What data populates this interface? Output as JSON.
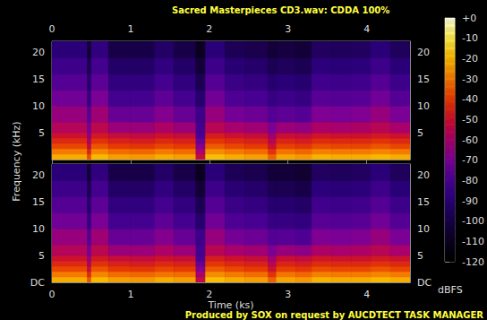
{
  "chart_data": {
    "type": "spectrogram",
    "title": "Sacred Masterpieces CD3.wav: CDDA 100%",
    "annotation": "Produced by SOX on request by AUCDTECT TASK MANAGER",
    "x_label": "Time (ks)",
    "y_label": "Frequency (kHz)",
    "xlim": [
      0,
      4.55
    ],
    "xticks": [
      0,
      1,
      2,
      3,
      4
    ],
    "ylim": [
      0,
      22.05
    ],
    "time_edges": [
      0,
      0.45,
      0.5,
      0.72,
      1.0,
      1.3,
      1.55,
      1.83,
      1.95,
      2.2,
      2.45,
      2.75,
      2.85,
      3.1,
      3.3,
      3.55,
      3.8,
      4.05,
      4.3,
      4.55
    ],
    "freq_edges": [
      0,
      1,
      2,
      3,
      4,
      5,
      7,
      10,
      13,
      16,
      19,
      22.05
    ],
    "panels": [
      {
        "yticks": [
          5,
          10,
          15,
          20
        ],
        "cells": [
          [
            -22,
            -37,
            -20,
            -24,
            -25,
            -22,
            -24,
            -52,
            -19,
            -22,
            -24,
            -34,
            -23,
            -25,
            -21,
            -22,
            -22,
            -20,
            -22
          ],
          [
            -30,
            -45,
            -28,
            -32,
            -33,
            -30,
            -32,
            -60,
            -27,
            -30,
            -32,
            -42,
            -31,
            -33,
            -29,
            -30,
            -30,
            -28,
            -30
          ],
          [
            -38,
            -53,
            -36,
            -40,
            -41,
            -38,
            -40,
            -68,
            -35,
            -38,
            -40,
            -50,
            -39,
            -41,
            -37,
            -38,
            -38,
            -36,
            -38
          ],
          [
            -44,
            -59,
            -42,
            -46,
            -47,
            -44,
            -46,
            -74,
            -41,
            -44,
            -46,
            -56,
            -45,
            -47,
            -43,
            -44,
            -44,
            -42,
            -44
          ],
          [
            -50,
            -65,
            -48,
            -52,
            -53,
            -50,
            -52,
            -80,
            -47,
            -50,
            -52,
            -62,
            -51,
            -53,
            -49,
            -50,
            -50,
            -48,
            -50
          ],
          [
            -57,
            -71,
            -55,
            -63,
            -63,
            -59,
            -63,
            -82,
            -56,
            -60,
            -62,
            -70,
            -63,
            -65,
            -59,
            -60,
            -59,
            -56,
            -60
          ],
          [
            -64,
            -78,
            -62,
            -74,
            -74,
            -68,
            -74,
            -84,
            -64,
            -71,
            -73,
            -78,
            -76,
            -78,
            -69,
            -70,
            -69,
            -64,
            -70
          ],
          [
            -72,
            -86,
            -70,
            -82,
            -82,
            -76,
            -82,
            -92,
            -72,
            -79,
            -81,
            -86,
            -84,
            -86,
            -77,
            -78,
            -77,
            -72,
            -78
          ],
          [
            -78,
            -92,
            -76,
            -88,
            -88,
            -82,
            -88,
            -98,
            -78,
            -85,
            -87,
            -92,
            -90,
            -92,
            -83,
            -84,
            -83,
            -78,
            -84
          ],
          [
            -84,
            -98,
            -82,
            -94,
            -94,
            -88,
            -94,
            -104,
            -84,
            -91,
            -93,
            -98,
            -96,
            -98,
            -89,
            -90,
            -89,
            -84,
            -90
          ],
          [
            -90,
            -104,
            -88,
            -100,
            -100,
            -94,
            -100,
            -110,
            -90,
            -97,
            -99,
            -104,
            -102,
            -104,
            -95,
            -96,
            -95,
            -90,
            -96
          ]
        ]
      },
      {
        "yticks": [
          {
            "value": 0,
            "label": "DC"
          },
          5,
          10,
          15,
          20
        ],
        "cells": [
          [
            -22,
            -36,
            -20,
            -24,
            -25,
            -22,
            -24,
            -53,
            -19,
            -22,
            -24,
            -34,
            -23,
            -25,
            -21,
            -22,
            -22,
            -20,
            -22
          ],
          [
            -30,
            -44,
            -28,
            -32,
            -33,
            -31,
            -32,
            -60,
            -27,
            -30,
            -32,
            -42,
            -31,
            -33,
            -29,
            -30,
            -30,
            -28,
            -30
          ],
          [
            -38,
            -52,
            -36,
            -40,
            -41,
            -38,
            -40,
            -68,
            -35,
            -38,
            -40,
            -50,
            -39,
            -41,
            -37,
            -38,
            -38,
            -36,
            -38
          ],
          [
            -44,
            -59,
            -42,
            -46,
            -47,
            -44,
            -46,
            -74,
            -41,
            -44,
            -46,
            -56,
            -45,
            -47,
            -43,
            -44,
            -44,
            -42,
            -44
          ],
          [
            -50,
            -65,
            -48,
            -52,
            -53,
            -50,
            -52,
            -80,
            -47,
            -50,
            -52,
            -62,
            -51,
            -53,
            -49,
            -50,
            -50,
            -48,
            -50
          ],
          [
            -57,
            -71,
            -55,
            -63,
            -63,
            -59,
            -63,
            -82,
            -56,
            -60,
            -62,
            -70,
            -64,
            -66,
            -59,
            -60,
            -59,
            -56,
            -60
          ],
          [
            -64,
            -78,
            -62,
            -74,
            -74,
            -68,
            -74,
            -84,
            -64,
            -71,
            -73,
            -78,
            -77,
            -79,
            -69,
            -70,
            -69,
            -64,
            -70
          ],
          [
            -72,
            -86,
            -70,
            -82,
            -82,
            -76,
            -82,
            -92,
            -72,
            -79,
            -81,
            -86,
            -86,
            -88,
            -77,
            -78,
            -77,
            -72,
            -78
          ],
          [
            -78,
            -92,
            -76,
            -88,
            -88,
            -82,
            -88,
            -98,
            -78,
            -85,
            -87,
            -92,
            -92,
            -94,
            -83,
            -84,
            -83,
            -78,
            -84
          ],
          [
            -84,
            -98,
            -82,
            -94,
            -94,
            -88,
            -94,
            -104,
            -84,
            -91,
            -93,
            -98,
            -98,
            -100,
            -89,
            -90,
            -89,
            -84,
            -90
          ],
          [
            -90,
            -104,
            -88,
            -100,
            -100,
            -94,
            -100,
            -110,
            -90,
            -97,
            -99,
            -104,
            -104,
            -106,
            -95,
            -96,
            -95,
            -90,
            -96
          ]
        ]
      }
    ],
    "colorbar": {
      "range": [
        -120,
        0
      ],
      "ticks": [
        {
          "value": 0,
          "label": "+0"
        },
        -10,
        -20,
        -30,
        -40,
        -50,
        -60,
        -70,
        -80,
        -90,
        -100,
        -110,
        -120
      ],
      "label": "dBFS"
    }
  }
}
